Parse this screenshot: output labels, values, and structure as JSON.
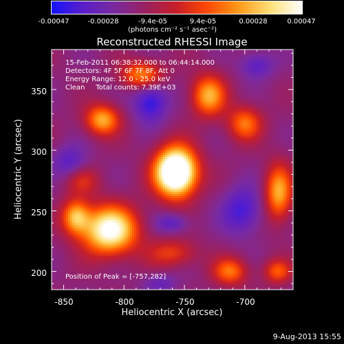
{
  "colorbar": {
    "ticks": [
      "-0.00047",
      "-0.00028",
      "-9.4e-05",
      "9.4e-05",
      "0.00028",
      "0.00047"
    ],
    "unit_label": "(photons cm⁻² s⁻¹ asec⁻²)",
    "range": [
      -0.00047,
      0.00047
    ],
    "stops": [
      "#1414ff",
      "#5a1ec8",
      "#7a2aa0",
      "#9a2060",
      "#c81e28",
      "#ff4a00",
      "#ff9c1a",
      "#ffe07a",
      "#ffffff"
    ]
  },
  "annotations": {
    "time": "15-Feb-2011 06:38:32.000 to 06:44:14.000",
    "detectors": "Detectors: 4F 5F 6F 7F 8F, Att 0",
    "energy": "Energy Range: 12.0 - 25.0 keV",
    "clean": "Clean     Total counts: 7.39E+03",
    "peak": "Position of Peak = [-757,282]"
  },
  "footer": {
    "date": "9-Aug-2013 15:55"
  },
  "chart_data": {
    "type": "heatmap",
    "title": "Reconstructed RHESSI Image",
    "xlabel": "Heliocentric X (arcsec)",
    "ylabel": "Heliocentric Y (arcsec)",
    "xlim": [
      -860,
      -660
    ],
    "ylim": [
      185,
      383
    ],
    "x_ticks": [
      -850,
      -800,
      -750,
      -700
    ],
    "y_ticks": [
      200,
      250,
      300,
      350
    ],
    "peak": [
      -757,
      282
    ],
    "sources": [
      {
        "x": -757,
        "y": 282,
        "sx": 12,
        "sy": 14,
        "amp": 1.0
      },
      {
        "x": -812,
        "y": 234,
        "sx": 16,
        "sy": 14,
        "amp": 0.7
      },
      {
        "x": -840,
        "y": 245,
        "sx": 8,
        "sy": 10,
        "amp": 0.45
      },
      {
        "x": -818,
        "y": 325,
        "sx": 10,
        "sy": 9,
        "amp": 0.45
      },
      {
        "x": -785,
        "y": 362,
        "sx": 12,
        "sy": 8,
        "amp": 0.4
      },
      {
        "x": -730,
        "y": 345,
        "sx": 10,
        "sy": 12,
        "amp": 0.45
      },
      {
        "x": -700,
        "y": 322,
        "sx": 10,
        "sy": 10,
        "amp": 0.35
      },
      {
        "x": -672,
        "y": 265,
        "sx": 8,
        "sy": 16,
        "amp": 0.45
      },
      {
        "x": -712,
        "y": 200,
        "sx": 10,
        "sy": 8,
        "amp": 0.35
      },
      {
        "x": -673,
        "y": 200,
        "sx": 8,
        "sy": 7,
        "amp": 0.3
      },
      {
        "x": -760,
        "y": 215,
        "sx": 14,
        "sy": 8,
        "amp": 0.25
      },
      {
        "x": -835,
        "y": 275,
        "sx": 10,
        "sy": 8,
        "amp": 0.2
      }
    ],
    "dips": [
      {
        "x": -778,
        "y": 340,
        "sx": 10,
        "sy": 12,
        "amp": 0.3
      },
      {
        "x": -702,
        "y": 250,
        "sx": 12,
        "sy": 14,
        "amp": 0.25
      },
      {
        "x": -760,
        "y": 240,
        "sx": 10,
        "sy": 6,
        "amp": 0.2
      },
      {
        "x": -845,
        "y": 290,
        "sx": 10,
        "sy": 10,
        "amp": 0.2
      },
      {
        "x": -690,
        "y": 370,
        "sx": 10,
        "sy": 8,
        "amp": 0.2
      },
      {
        "x": -770,
        "y": 190,
        "sx": 10,
        "sy": 6,
        "amp": 0.15
      }
    ]
  }
}
